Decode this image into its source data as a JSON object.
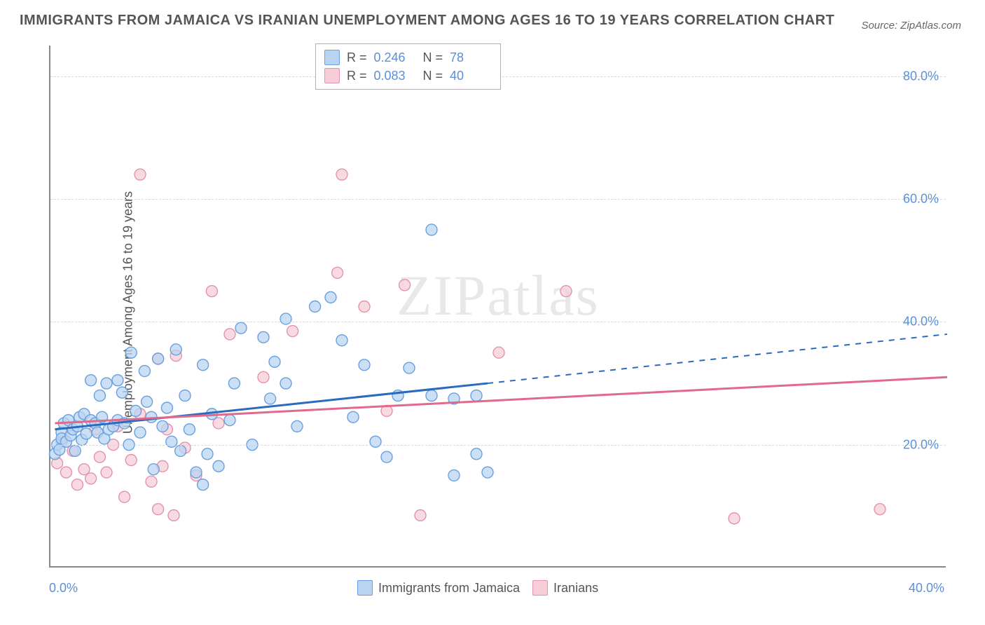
{
  "chart": {
    "type": "scatter",
    "title": "IMMIGRANTS FROM JAMAICA VS IRANIAN UNEMPLOYMENT AMONG AGES 16 TO 19 YEARS CORRELATION CHART",
    "source": "Source: ZipAtlas.com",
    "y_axis_label": "Unemployment Among Ages 16 to 19 years",
    "watermark": "ZIPatlas",
    "xlim": [
      0,
      40
    ],
    "ylim": [
      0,
      85
    ],
    "x_ticks": [
      {
        "v": 0,
        "label": "0.0%"
      },
      {
        "v": 40,
        "label": "40.0%"
      }
    ],
    "y_ticks": [
      {
        "v": 20,
        "label": "20.0%"
      },
      {
        "v": 40,
        "label": "40.0%"
      },
      {
        "v": 60,
        "label": "60.0%"
      },
      {
        "v": 80,
        "label": "80.0%"
      }
    ],
    "grid_color": "#d8d8d8",
    "axis_color": "#888888",
    "background_color": "#ffffff",
    "series": [
      {
        "name": "Immigrants from Jamaica",
        "color_fill": "#b9d4f1",
        "color_stroke": "#6aa0dd",
        "trend_color": "#2a6bbf",
        "marker_radius": 8,
        "marker_opacity": 0.75,
        "R": "0.246",
        "N": "78",
        "trend": {
          "x1": 0.2,
          "y1": 22.5,
          "x2": 19.5,
          "y2": 30.0,
          "x2_ext": 40,
          "y2_ext": 38.0
        },
        "points": [
          [
            0.2,
            18.5
          ],
          [
            0.3,
            20.0
          ],
          [
            0.4,
            19.2
          ],
          [
            0.5,
            22.0
          ],
          [
            0.5,
            21.0
          ],
          [
            0.6,
            23.5
          ],
          [
            0.7,
            20.5
          ],
          [
            0.8,
            24.0
          ],
          [
            0.9,
            21.5
          ],
          [
            1.0,
            22.5
          ],
          [
            1.1,
            19.0
          ],
          [
            1.2,
            23.0
          ],
          [
            1.3,
            24.5
          ],
          [
            1.4,
            20.8
          ],
          [
            1.5,
            25.0
          ],
          [
            1.6,
            21.8
          ],
          [
            1.8,
            30.5
          ],
          [
            1.8,
            24.0
          ],
          [
            2.0,
            23.5
          ],
          [
            2.1,
            22.0
          ],
          [
            2.2,
            28.0
          ],
          [
            2.3,
            24.5
          ],
          [
            2.4,
            21.0
          ],
          [
            2.5,
            30.0
          ],
          [
            2.6,
            22.5
          ],
          [
            2.8,
            23.0
          ],
          [
            3.0,
            30.5
          ],
          [
            3.0,
            24.0
          ],
          [
            3.2,
            28.5
          ],
          [
            3.3,
            23.5
          ],
          [
            3.5,
            20.0
          ],
          [
            3.6,
            35.0
          ],
          [
            3.8,
            25.5
          ],
          [
            4.0,
            22.0
          ],
          [
            4.2,
            32.0
          ],
          [
            4.3,
            27.0
          ],
          [
            4.5,
            24.5
          ],
          [
            4.6,
            16.0
          ],
          [
            4.8,
            34.0
          ],
          [
            5.0,
            23.0
          ],
          [
            5.2,
            26.0
          ],
          [
            5.4,
            20.5
          ],
          [
            5.6,
            35.5
          ],
          [
            5.8,
            19.0
          ],
          [
            6.0,
            28.0
          ],
          [
            6.2,
            22.5
          ],
          [
            6.5,
            15.5
          ],
          [
            6.8,
            13.5
          ],
          [
            6.8,
            33.0
          ],
          [
            7.0,
            18.5
          ],
          [
            7.5,
            16.5
          ],
          [
            7.2,
            25.0
          ],
          [
            8.0,
            24.0
          ],
          [
            8.2,
            30.0
          ],
          [
            8.5,
            39.0
          ],
          [
            9.0,
            20.0
          ],
          [
            9.5,
            37.5
          ],
          [
            9.8,
            27.5
          ],
          [
            10.0,
            33.5
          ],
          [
            10.5,
            40.5
          ],
          [
            10.5,
            30.0
          ],
          [
            11.0,
            23.0
          ],
          [
            11.8,
            42.5
          ],
          [
            12.5,
            44.0
          ],
          [
            13.0,
            37.0
          ],
          [
            13.5,
            24.5
          ],
          [
            14.0,
            33.0
          ],
          [
            14.5,
            20.5
          ],
          [
            15.0,
            18.0
          ],
          [
            15.5,
            28.0
          ],
          [
            16.0,
            32.5
          ],
          [
            17.0,
            28.0
          ],
          [
            17.0,
            55.0
          ],
          [
            18.0,
            27.5
          ],
          [
            18.0,
            15.0
          ],
          [
            19.0,
            18.5
          ],
          [
            19.0,
            28.0
          ],
          [
            19.5,
            15.5
          ]
        ]
      },
      {
        "name": "Iranians",
        "color_fill": "#f6cdd8",
        "color_stroke": "#e493ab",
        "trend_color": "#e06a8c",
        "marker_radius": 8,
        "marker_opacity": 0.75,
        "R": "0.083",
        "N": "40",
        "trend": {
          "x1": 0.2,
          "y1": 23.5,
          "x2": 40,
          "y2": 31.0,
          "x2_ext": 40,
          "y2_ext": 31.0
        },
        "points": [
          [
            0.3,
            17.0
          ],
          [
            0.5,
            20.5
          ],
          [
            0.7,
            15.5
          ],
          [
            1.0,
            19.0
          ],
          [
            1.2,
            13.5
          ],
          [
            1.5,
            16.0
          ],
          [
            1.8,
            14.5
          ],
          [
            2.0,
            22.5
          ],
          [
            2.2,
            18.0
          ],
          [
            2.5,
            15.5
          ],
          [
            2.8,
            20.0
          ],
          [
            3.0,
            23.0
          ],
          [
            3.3,
            11.5
          ],
          [
            3.6,
            17.5
          ],
          [
            4.0,
            25.0
          ],
          [
            4.0,
            64.0
          ],
          [
            4.5,
            14.0
          ],
          [
            4.8,
            9.5
          ],
          [
            4.8,
            34.0
          ],
          [
            5.2,
            22.5
          ],
          [
            5.0,
            16.5
          ],
          [
            5.5,
            8.5
          ],
          [
            5.6,
            34.5
          ],
          [
            6.0,
            19.5
          ],
          [
            6.5,
            15.0
          ],
          [
            7.5,
            23.5
          ],
          [
            7.2,
            45.0
          ],
          [
            8.0,
            38.0
          ],
          [
            9.5,
            31.0
          ],
          [
            10.8,
            38.5
          ],
          [
            12.8,
            48.0
          ],
          [
            13.0,
            64.0
          ],
          [
            14.0,
            42.5
          ],
          [
            15.0,
            25.5
          ],
          [
            15.8,
            46.0
          ],
          [
            16.5,
            8.5
          ],
          [
            20.0,
            35.0
          ],
          [
            30.5,
            8.0
          ],
          [
            37.0,
            9.5
          ],
          [
            23.0,
            45.0
          ]
        ]
      }
    ],
    "legend_top": {
      "rows": [
        {
          "swatch_fill": "#b9d4f1",
          "swatch_stroke": "#6aa0dd",
          "R_label": "R =",
          "R_val": "0.246",
          "N_label": "N =",
          "N_val": "78"
        },
        {
          "swatch_fill": "#f6cdd8",
          "swatch_stroke": "#e493ab",
          "R_label": "R =",
          "R_val": "0.083",
          "N_label": "N =",
          "N_val": "40"
        }
      ]
    },
    "legend_bottom": {
      "items": [
        {
          "swatch_fill": "#b9d4f1",
          "swatch_stroke": "#6aa0dd",
          "label": "Immigrants from Jamaica"
        },
        {
          "swatch_fill": "#f6cdd8",
          "swatch_stroke": "#e493ab",
          "label": "Iranians"
        }
      ]
    },
    "title_fontsize": 20,
    "tick_fontsize": 18,
    "label_fontsize": 18
  }
}
